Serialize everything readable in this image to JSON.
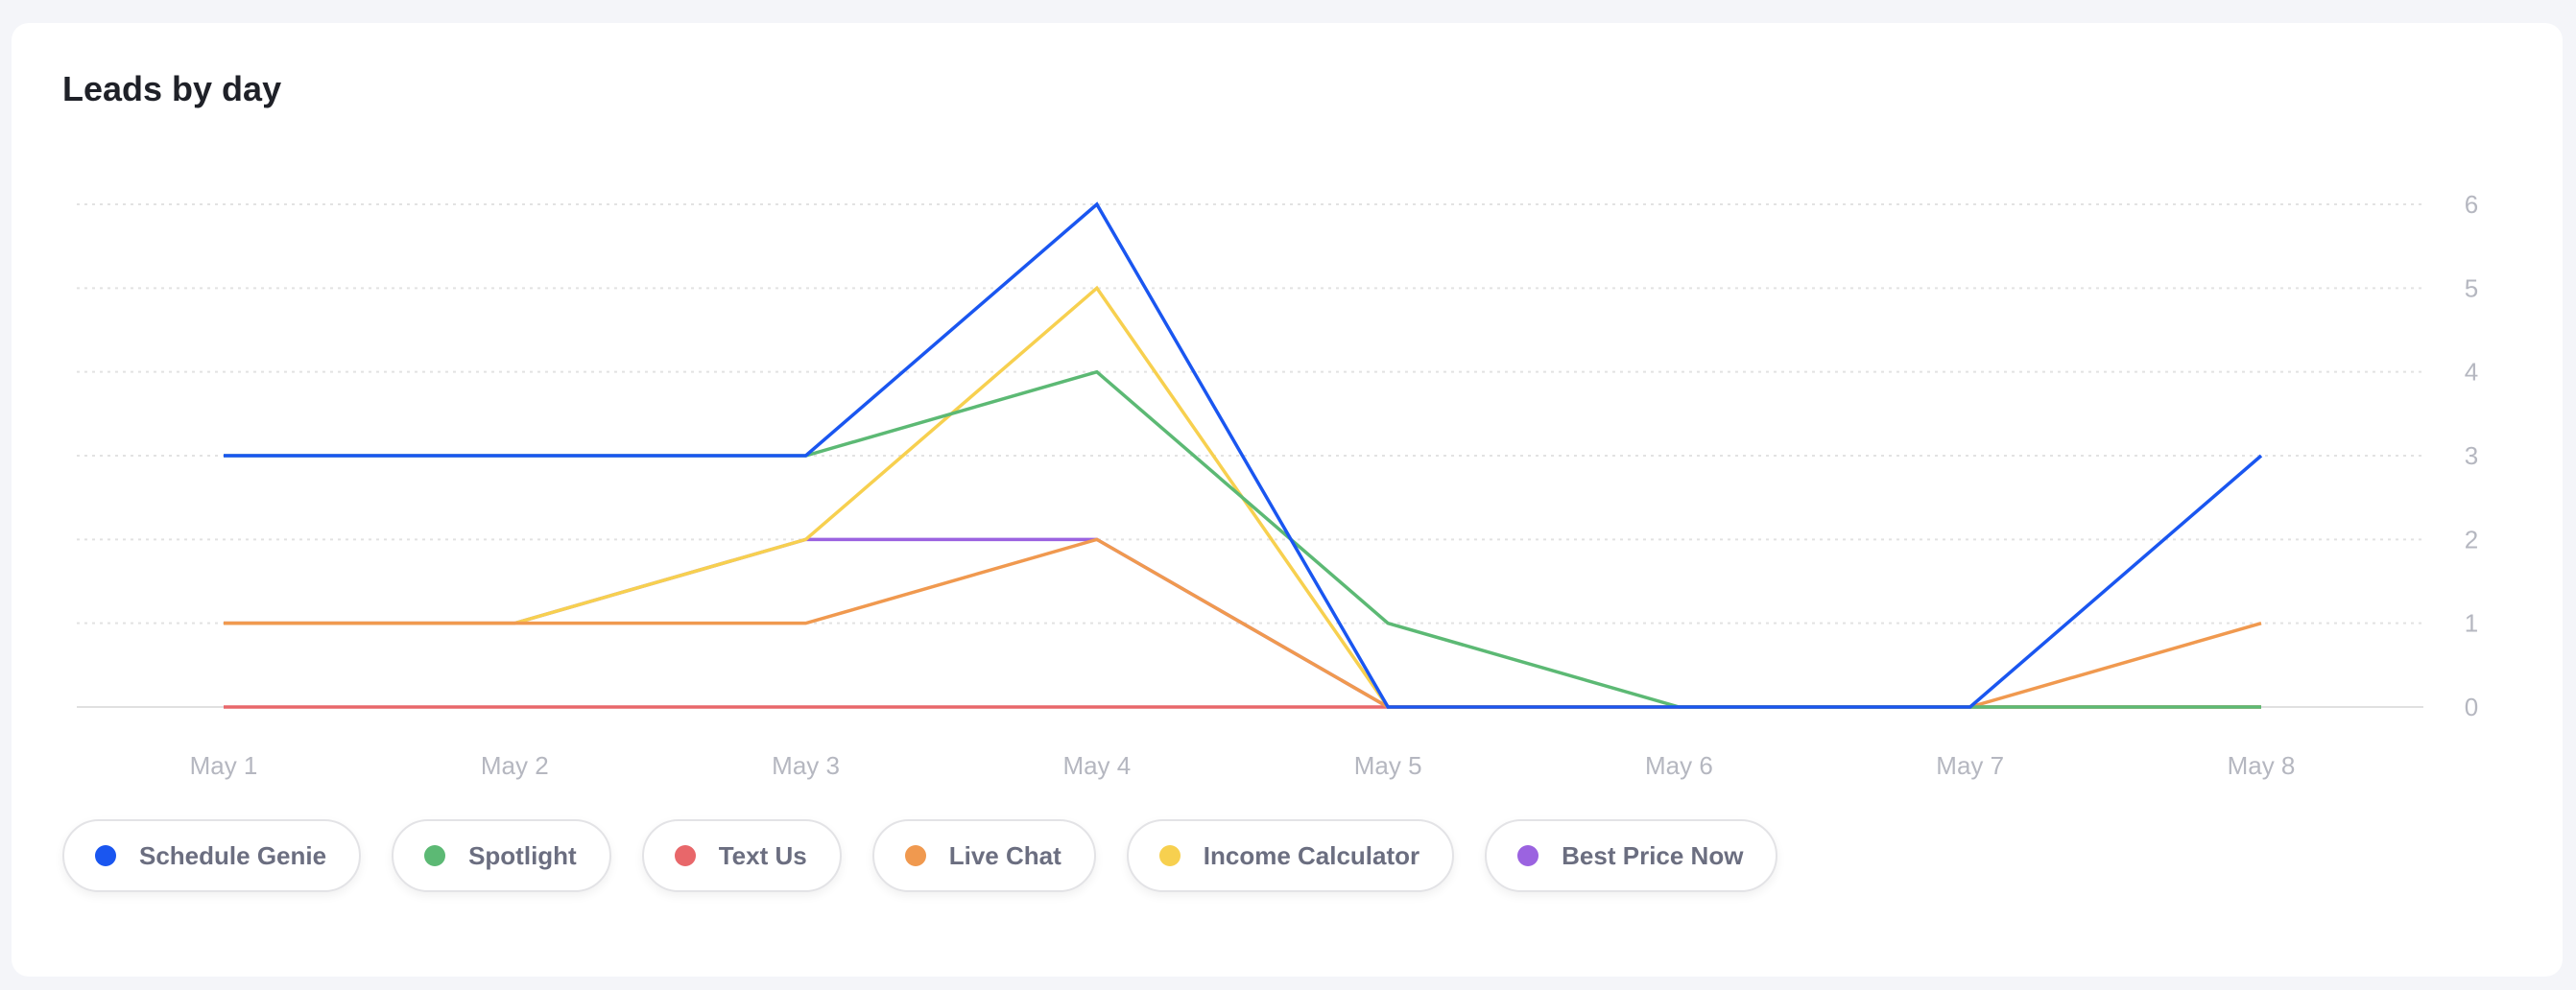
{
  "card": {
    "title": "Leads by day"
  },
  "chart_data": {
    "type": "line",
    "title": "Leads by day",
    "categories": [
      "May 1",
      "May 2",
      "May 3",
      "May 4",
      "May 5",
      "May 6",
      "May 7",
      "May 8"
    ],
    "y_ticks": [
      0,
      1,
      2,
      3,
      4,
      5,
      6
    ],
    "ylim": [
      0,
      6
    ],
    "y_axis_position": "right",
    "grid": true,
    "legend_placement": "bottom-left",
    "series": [
      {
        "name": "Schedule Genie",
        "color": "#1a56f0",
        "values": [
          3,
          3,
          3,
          6,
          0,
          0,
          0,
          3
        ]
      },
      {
        "name": "Spotlight",
        "color": "#5cb974",
        "values": [
          3,
          3,
          3,
          4,
          1,
          0,
          0,
          0
        ]
      },
      {
        "name": "Text Us",
        "color": "#e8676a",
        "values": [
          0,
          0,
          0,
          0,
          0,
          0,
          0,
          0
        ]
      },
      {
        "name": "Live Chat",
        "color": "#f0994f",
        "values": [
          1,
          1,
          1,
          2,
          0,
          0,
          0,
          1
        ]
      },
      {
        "name": "Income Calculator",
        "color": "#f7d04f",
        "values": [
          1,
          1,
          2,
          5,
          0,
          0,
          0,
          0
        ]
      },
      {
        "name": "Best Price Now",
        "color": "#9b63e0",
        "values": [
          1,
          1,
          2,
          2,
          0,
          0,
          0,
          0
        ]
      }
    ]
  }
}
